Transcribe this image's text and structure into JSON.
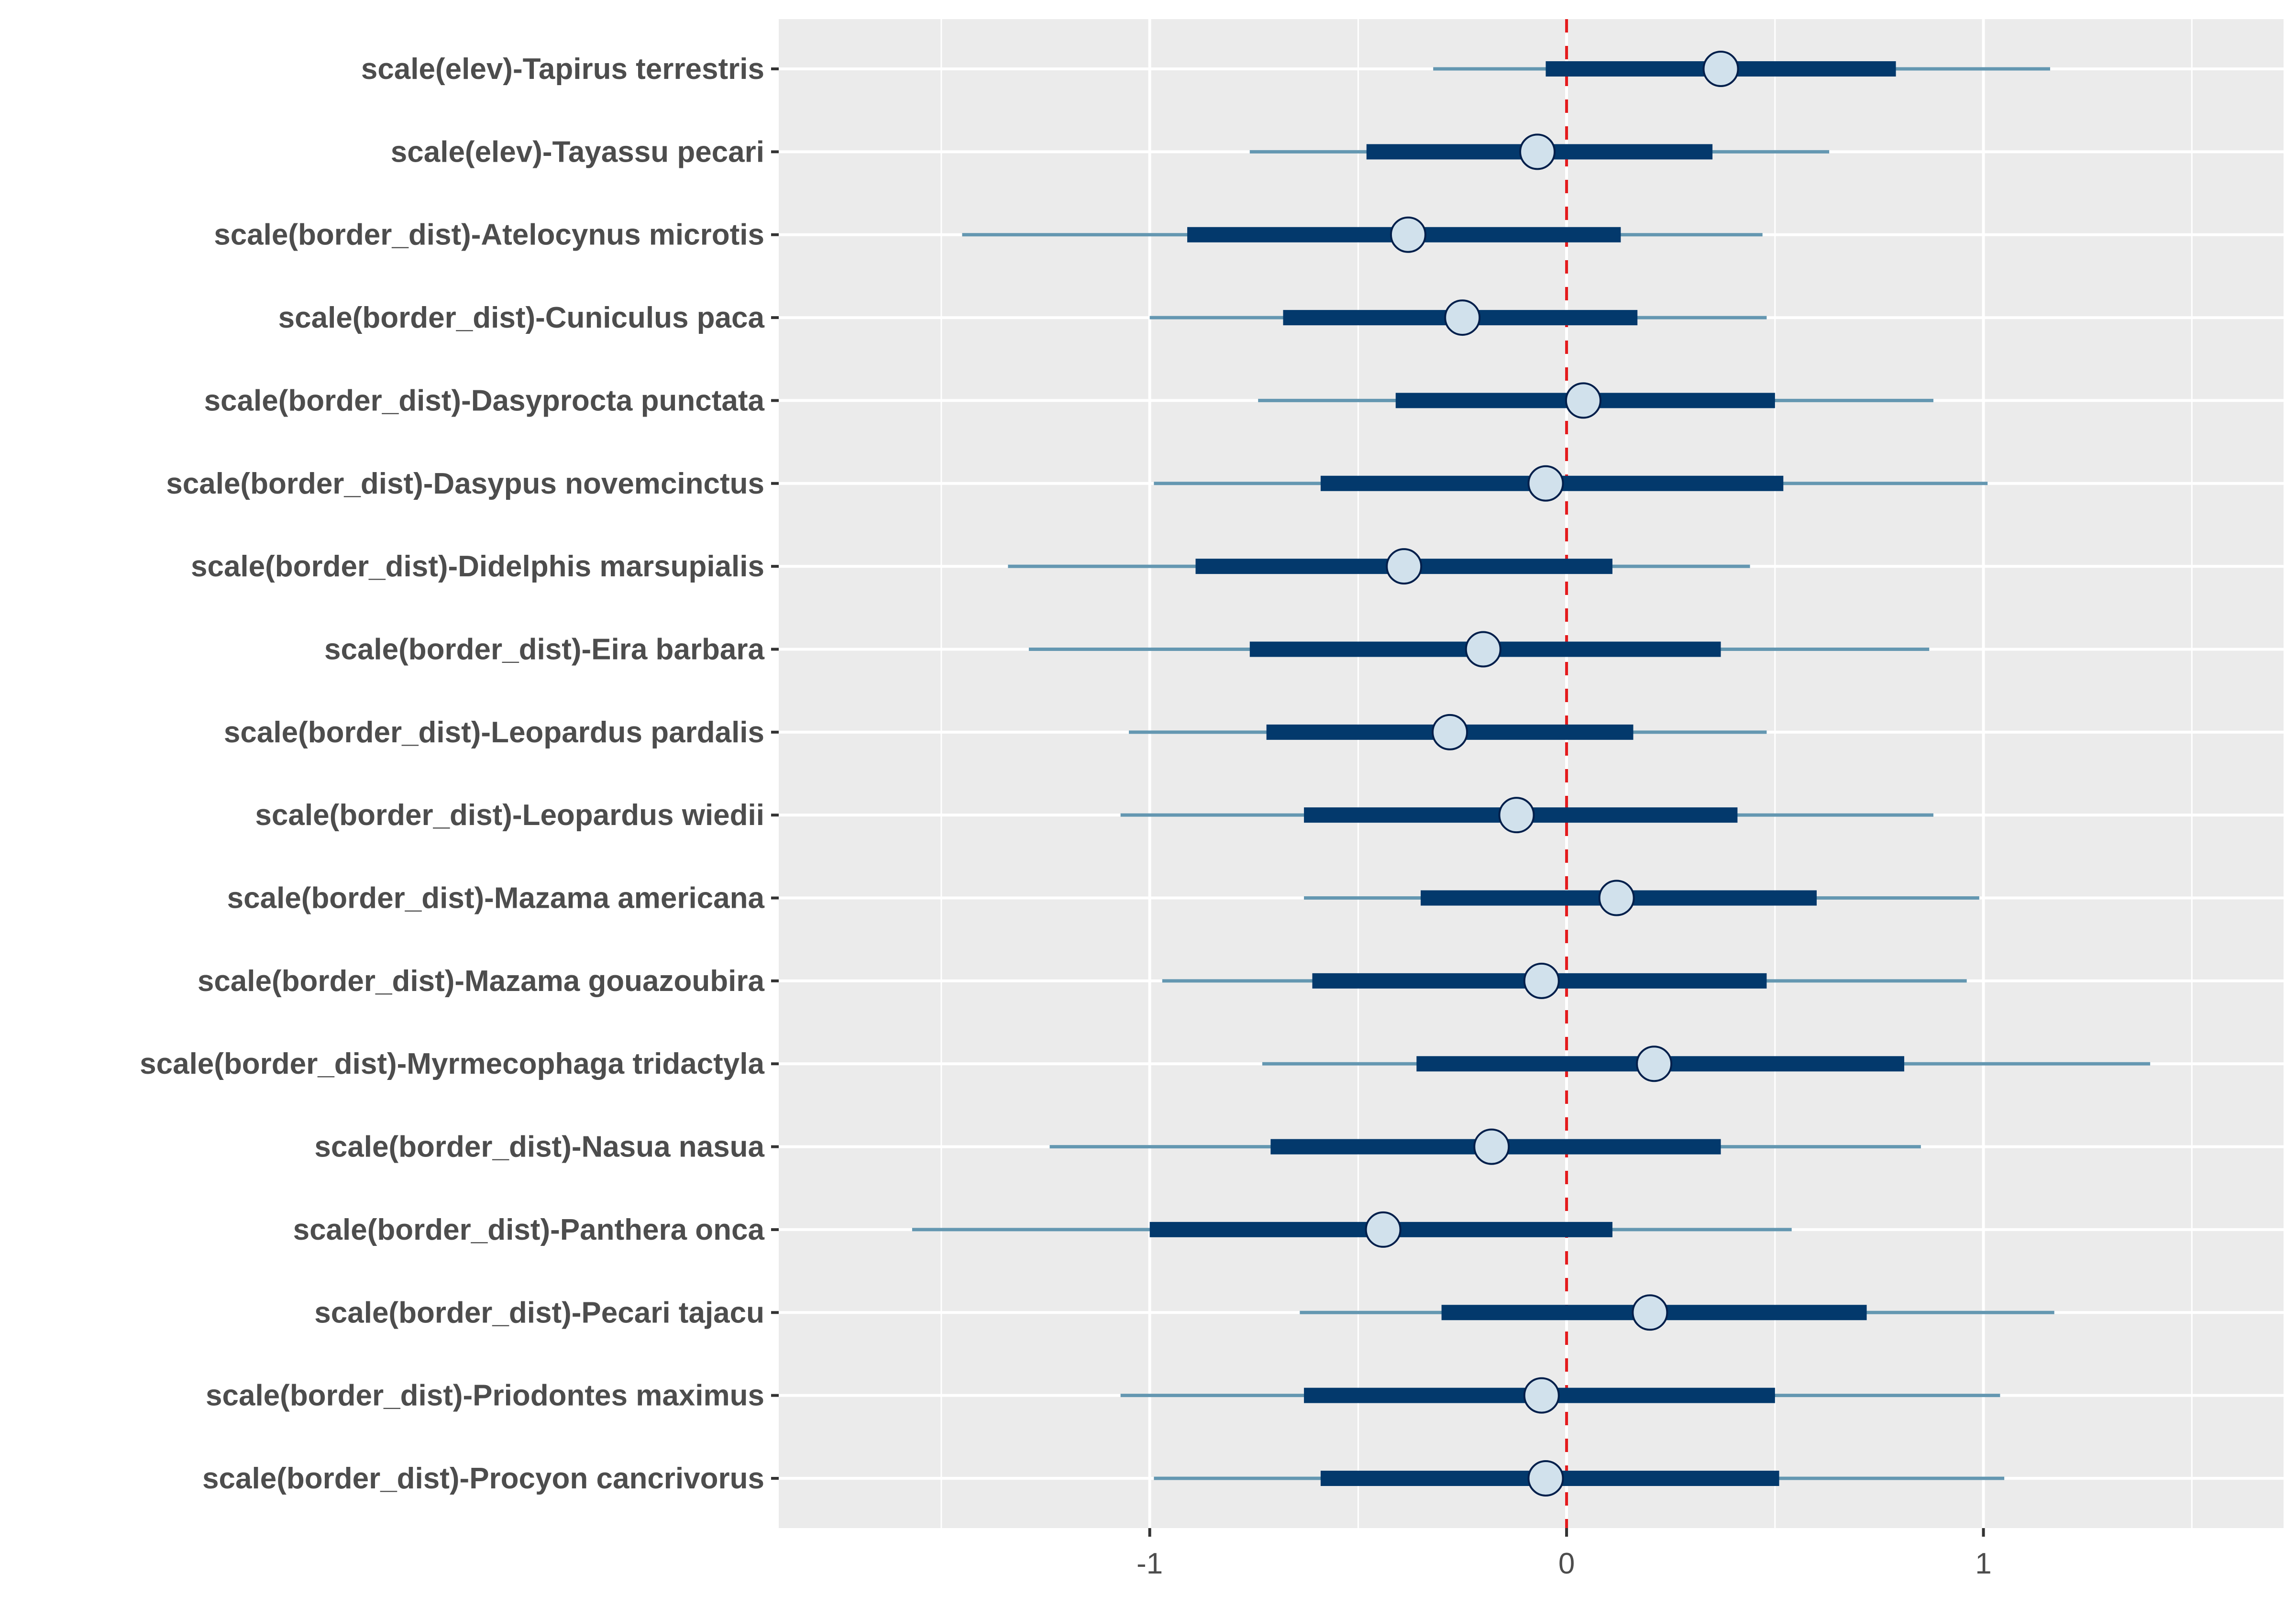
{
  "chart_data": {
    "type": "interval-plot",
    "title": "",
    "xlabel": "",
    "ylabel": "",
    "xlim": [
      -1.89,
      1.72
    ],
    "xticks": [
      -1,
      0,
      1
    ],
    "xtick_labels": [
      "-1",
      "0",
      "1"
    ],
    "minor_gridlines": [
      -1.5,
      -0.5,
      0.5,
      1.5
    ],
    "reference_line": {
      "x": 0,
      "style": "dashed",
      "color": "#e41a1c"
    },
    "grid": true,
    "colors": {
      "panel_bg": "#ebebeb",
      "outer_interval": "#6497b1",
      "inner_interval": "#03396c",
      "point_fill": "#d1e1ec",
      "point_stroke": "#011f4b"
    },
    "rows": [
      {
        "label": "scale(elev)-Tapirus terrestris",
        "outer": [
          -0.32,
          1.16
        ],
        "inner": [
          -0.05,
          0.79
        ],
        "point": 0.37
      },
      {
        "label": "scale(elev)-Tayassu pecari",
        "outer": [
          -0.76,
          0.63
        ],
        "inner": [
          -0.48,
          0.35
        ],
        "point": -0.07
      },
      {
        "label": "scale(border_dist)-Atelocynus microtis",
        "outer": [
          -1.45,
          0.47
        ],
        "inner": [
          -0.91,
          0.13
        ],
        "point": -0.38
      },
      {
        "label": "scale(border_dist)-Cuniculus paca",
        "outer": [
          -1.0,
          0.48
        ],
        "inner": [
          -0.68,
          0.17
        ],
        "point": -0.25
      },
      {
        "label": "scale(border_dist)-Dasyprocta punctata",
        "outer": [
          -0.74,
          0.88
        ],
        "inner": [
          -0.41,
          0.5
        ],
        "point": 0.04
      },
      {
        "label": "scale(border_dist)-Dasypus novemcinctus",
        "outer": [
          -0.99,
          1.01
        ],
        "inner": [
          -0.59,
          0.52
        ],
        "point": -0.05
      },
      {
        "label": "scale(border_dist)-Didelphis marsupialis",
        "outer": [
          -1.34,
          0.44
        ],
        "inner": [
          -0.89,
          0.11
        ],
        "point": -0.39
      },
      {
        "label": "scale(border_dist)-Eira barbara",
        "outer": [
          -1.29,
          0.87
        ],
        "inner": [
          -0.76,
          0.37
        ],
        "point": -0.2
      },
      {
        "label": "scale(border_dist)-Leopardus pardalis",
        "outer": [
          -1.05,
          0.48
        ],
        "inner": [
          -0.72,
          0.16
        ],
        "point": -0.28
      },
      {
        "label": "scale(border_dist)-Leopardus wiedii",
        "outer": [
          -1.07,
          0.88
        ],
        "inner": [
          -0.63,
          0.41
        ],
        "point": -0.12
      },
      {
        "label": "scale(border_dist)-Mazama americana",
        "outer": [
          -0.63,
          0.99
        ],
        "inner": [
          -0.35,
          0.6
        ],
        "point": 0.12
      },
      {
        "label": "scale(border_dist)-Mazama gouazoubira",
        "outer": [
          -0.97,
          0.96
        ],
        "inner": [
          -0.61,
          0.48
        ],
        "point": -0.06
      },
      {
        "label": "scale(border_dist)-Myrmecophaga tridactyla",
        "outer": [
          -0.73,
          1.4
        ],
        "inner": [
          -0.36,
          0.81
        ],
        "point": 0.21
      },
      {
        "label": "scale(border_dist)-Nasua nasua",
        "outer": [
          -1.24,
          0.85
        ],
        "inner": [
          -0.71,
          0.37
        ],
        "point": -0.18
      },
      {
        "label": "scale(border_dist)-Panthera onca",
        "outer": [
          -1.57,
          0.54
        ],
        "inner": [
          -1.0,
          0.11
        ],
        "point": -0.44
      },
      {
        "label": "scale(border_dist)-Pecari tajacu",
        "outer": [
          -0.64,
          1.17
        ],
        "inner": [
          -0.3,
          0.72
        ],
        "point": 0.2
      },
      {
        "label": "scale(border_dist)-Priodontes maximus",
        "outer": [
          -1.07,
          1.04
        ],
        "inner": [
          -0.63,
          0.5
        ],
        "point": -0.06
      },
      {
        "label": "scale(border_dist)-Procyon cancrivorus",
        "outer": [
          -0.99,
          1.05
        ],
        "inner": [
          -0.59,
          0.51
        ],
        "point": -0.05
      }
    ]
  }
}
